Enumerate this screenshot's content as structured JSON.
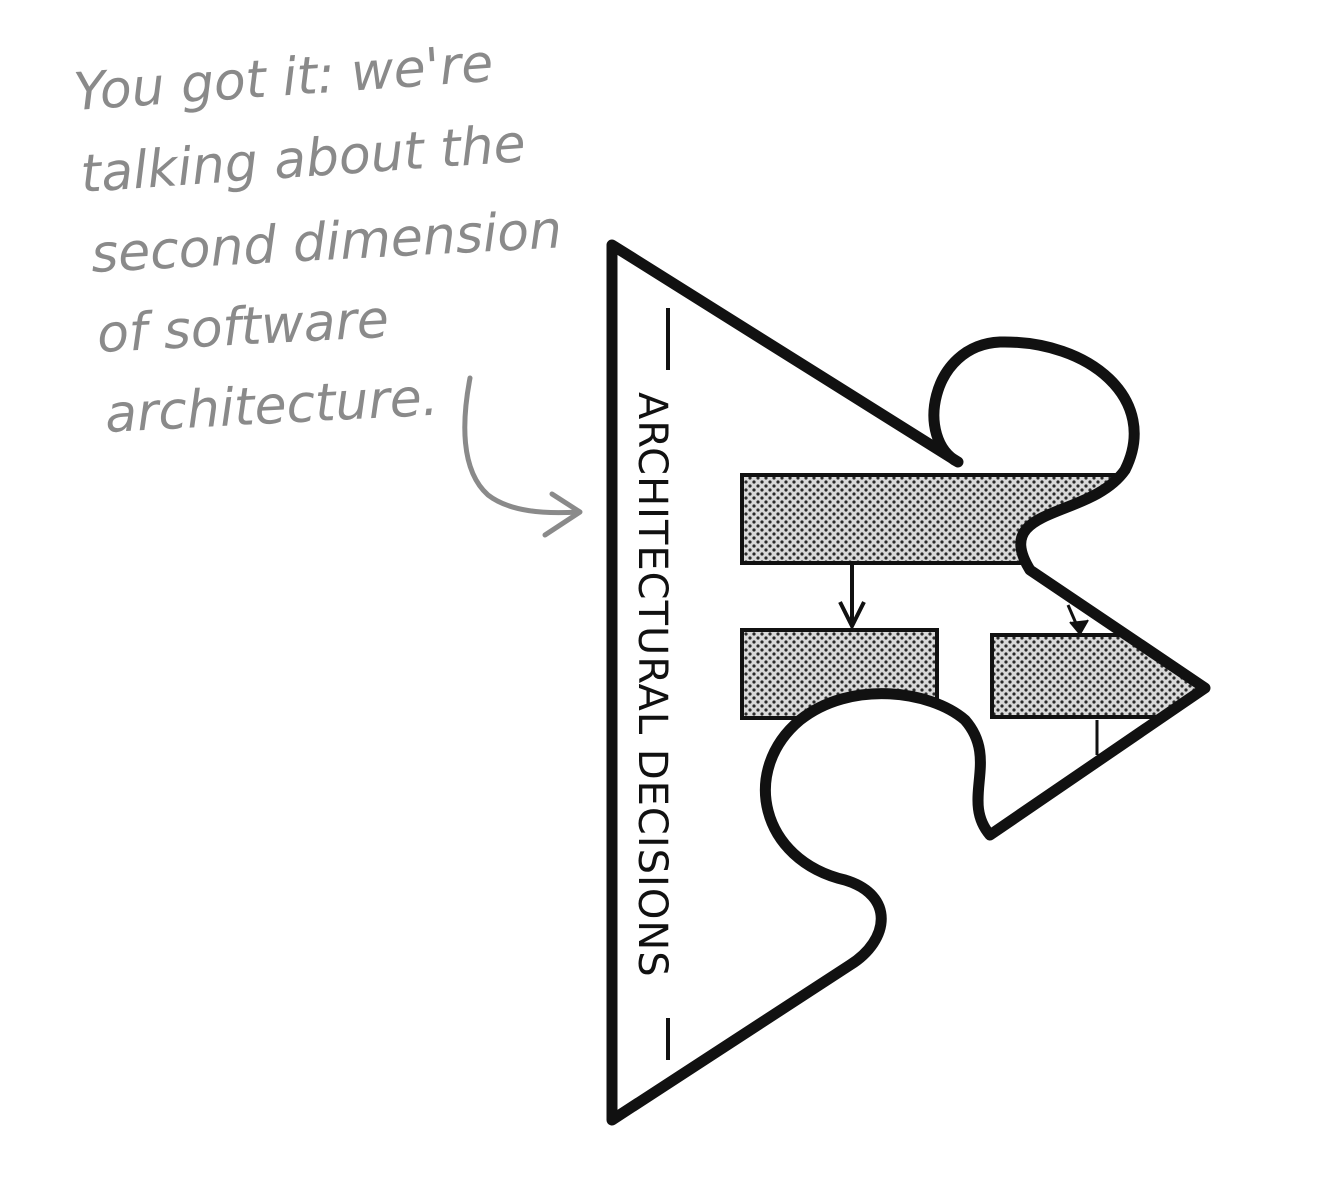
{
  "annotation": {
    "lines": [
      "You got it: we're",
      "talking about the",
      "second dimension",
      "of software",
      "architecture."
    ]
  },
  "puzzle_piece": {
    "label": "ARCHITECTURAL DECISIONS"
  },
  "colors": {
    "ink": "#111111",
    "note": "#8a8a8a",
    "hatch": "#bdbdbd",
    "background": "#ffffff"
  }
}
